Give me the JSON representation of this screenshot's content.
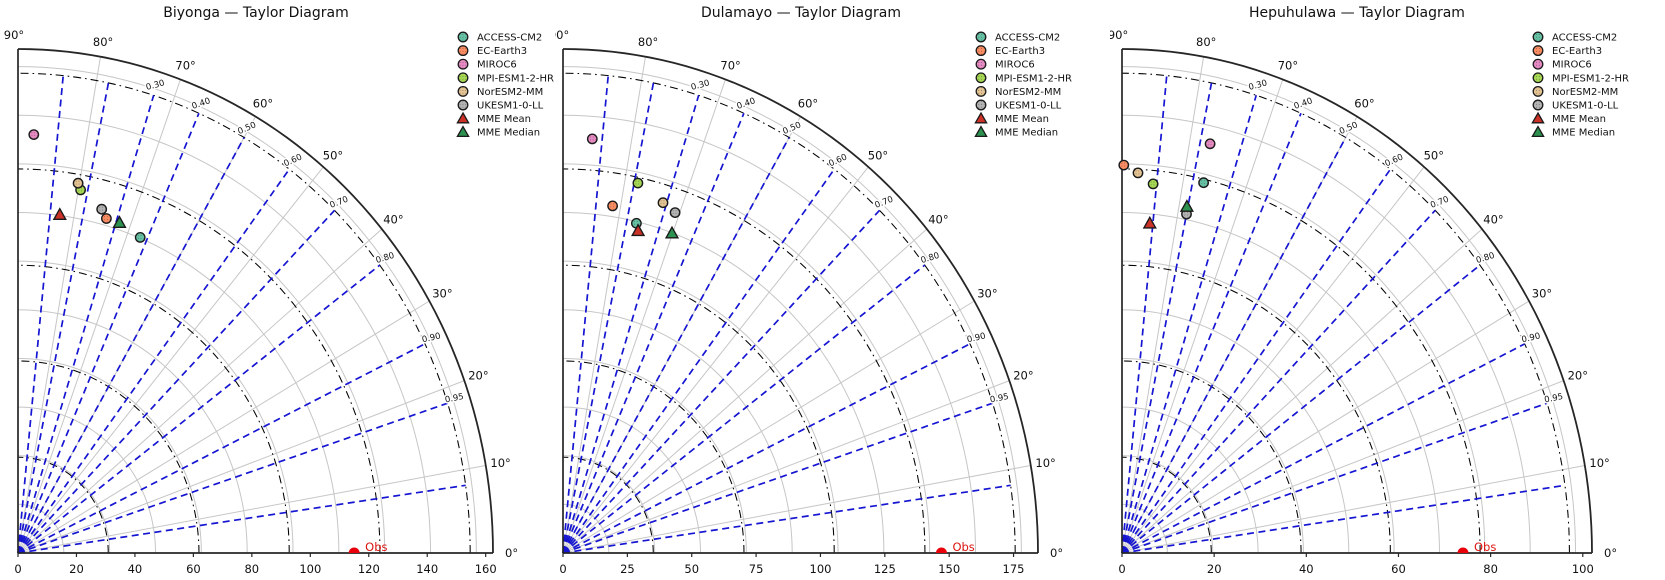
{
  "figure": {
    "kind": "taylor-diagram-triptych",
    "background": "#ffffff"
  },
  "colors": {
    "spoke_blue": "#1515d2",
    "grid_gray": "#c6c6c6",
    "rms_arc_black": "#000000",
    "boundary_dark": "#262626",
    "obs_marker_red": "#e8000b",
    "obs_text_red": "#dc1410",
    "text": "#111111",
    "marker_edge": "#1a1a1a"
  },
  "legend": {
    "entries": [
      {
        "label": "ACCESS-CM2",
        "marker": "circle",
        "color": "#66c2a5"
      },
      {
        "label": "EC-Earth3",
        "marker": "circle",
        "color": "#fc8d62"
      },
      {
        "label": "MIROC6",
        "marker": "circle",
        "color": "#e78ac3"
      },
      {
        "label": "MPI-ESM1-2-HR",
        "marker": "circle",
        "color": "#a6d854"
      },
      {
        "label": "NorESM2-MM",
        "marker": "circle",
        "color": "#e5c494"
      },
      {
        "label": "UKESM1-0-LL",
        "marker": "circle",
        "color": "#b3b3b3"
      },
      {
        "label": "MME Mean",
        "marker": "triangle",
        "color": "#cb3127"
      },
      {
        "label": "MME Median",
        "marker": "triangle",
        "color": "#2d9150"
      }
    ]
  },
  "axes": {
    "angle_tick_labels": [
      {
        "deg": 90,
        "label": "90°"
      },
      {
        "deg": 80,
        "label": "80°"
      },
      {
        "deg": 70,
        "label": "70°"
      },
      {
        "deg": 60,
        "label": "60°"
      },
      {
        "deg": 50,
        "label": "50°"
      },
      {
        "deg": 40,
        "label": "40°"
      },
      {
        "deg": 30,
        "label": "30°"
      },
      {
        "deg": 20,
        "label": "20°"
      },
      {
        "deg": 10,
        "label": "10°"
      },
      {
        "deg": 0,
        "label": "0°"
      }
    ],
    "corr_tick_labels": [
      "0.30",
      "0.40",
      "0.50",
      "0.60",
      "0.70",
      "0.80",
      "0.90",
      "0.95"
    ],
    "corr_spoke_values": [
      0.1,
      0.2,
      0.3,
      0.4,
      0.5,
      0.6,
      0.7,
      0.8,
      0.9,
      0.95,
      0.99
    ]
  },
  "chart_data": [
    {
      "type": "taylor",
      "title": "Biyonga — Taylor Diagram",
      "radial_ticks": [
        0,
        20,
        40,
        60,
        80,
        100,
        120,
        140,
        160
      ],
      "radial_tick_labels": [
        "0",
        "20",
        "40",
        "60",
        "80",
        "100",
        "120",
        "140",
        "160"
      ],
      "axis_max": 162.5,
      "obs": {
        "label": "Obs",
        "std": 115
      },
      "points": [
        {
          "model": "ACCESS-CM2",
          "std": 110.0,
          "corr": 0.38
        },
        {
          "model": "EC-Earth3",
          "std": 112.0,
          "corr": 0.27
        },
        {
          "model": "MIROC6",
          "std": 135.0,
          "corr": 0.04
        },
        {
          "model": "MPI-ESM1-2-HR",
          "std": 119.0,
          "corr": 0.18
        },
        {
          "model": "NorESM2-MM",
          "std": 121.0,
          "corr": 0.17
        },
        {
          "model": "UKESM1-0-LL",
          "std": 114.5,
          "corr": 0.25
        },
        {
          "model": "MME Mean",
          "std": 110.0,
          "corr": 0.13
        },
        {
          "model": "MME Median",
          "std": 112.0,
          "corr": 0.31
        }
      ]
    },
    {
      "type": "taylor",
      "title": "Dulamayo — Taylor Diagram",
      "radial_ticks": [
        0,
        25,
        50,
        75,
        100,
        125,
        150,
        175
      ],
      "radial_tick_labels": [
        "0",
        "25",
        "50",
        "75",
        "100",
        "125",
        "150",
        "175"
      ],
      "axis_max": 184.5,
      "obs": {
        "label": "Obs",
        "std": 147
      },
      "points": [
        {
          "model": "ACCESS-CM2",
          "std": 124.0,
          "corr": 0.23
        },
        {
          "model": "EC-Earth3",
          "std": 128.5,
          "corr": 0.15
        },
        {
          "model": "MIROC6",
          "std": 152.0,
          "corr": 0.075
        },
        {
          "model": "MPI-ESM1-2-HR",
          "std": 138.5,
          "corr": 0.21
        },
        {
          "model": "NorESM2-MM",
          "std": 134.0,
          "corr": 0.29
        },
        {
          "model": "UKESM1-0-LL",
          "std": 132.0,
          "corr": 0.33
        },
        {
          "model": "MME Mean",
          "std": 121.5,
          "corr": 0.24
        },
        {
          "model": "MME Median",
          "std": 124.5,
          "corr": 0.34
        }
      ]
    },
    {
      "type": "taylor",
      "title": "Hepuhulawa — Taylor Diagram",
      "radial_ticks": [
        0,
        20,
        40,
        60,
        80,
        100
      ],
      "radial_tick_labels": [
        "0",
        "20",
        "40",
        "60",
        "80",
        "100"
      ],
      "axis_max": 102,
      "obs": {
        "label": "Obs",
        "std": 74
      },
      "points": [
        {
          "model": "ACCESS-CM2",
          "std": 77.0,
          "corr": 0.23
        },
        {
          "model": "EC-Earth3",
          "std": 78.5,
          "corr": 0.005
        },
        {
          "model": "MIROC6",
          "std": 85.0,
          "corr": 0.225
        },
        {
          "model": "MPI-ESM1-2-HR",
          "std": 75.0,
          "corr": 0.09
        },
        {
          "model": "NorESM2-MM",
          "std": 77.0,
          "corr": 0.045
        },
        {
          "model": "UKESM1-0-LL",
          "std": 70.0,
          "corr": 0.2
        },
        {
          "model": "MME Mean",
          "std": 67.0,
          "corr": 0.09
        },
        {
          "model": "MME Median",
          "std": 71.5,
          "corr": 0.197
        }
      ]
    }
  ]
}
